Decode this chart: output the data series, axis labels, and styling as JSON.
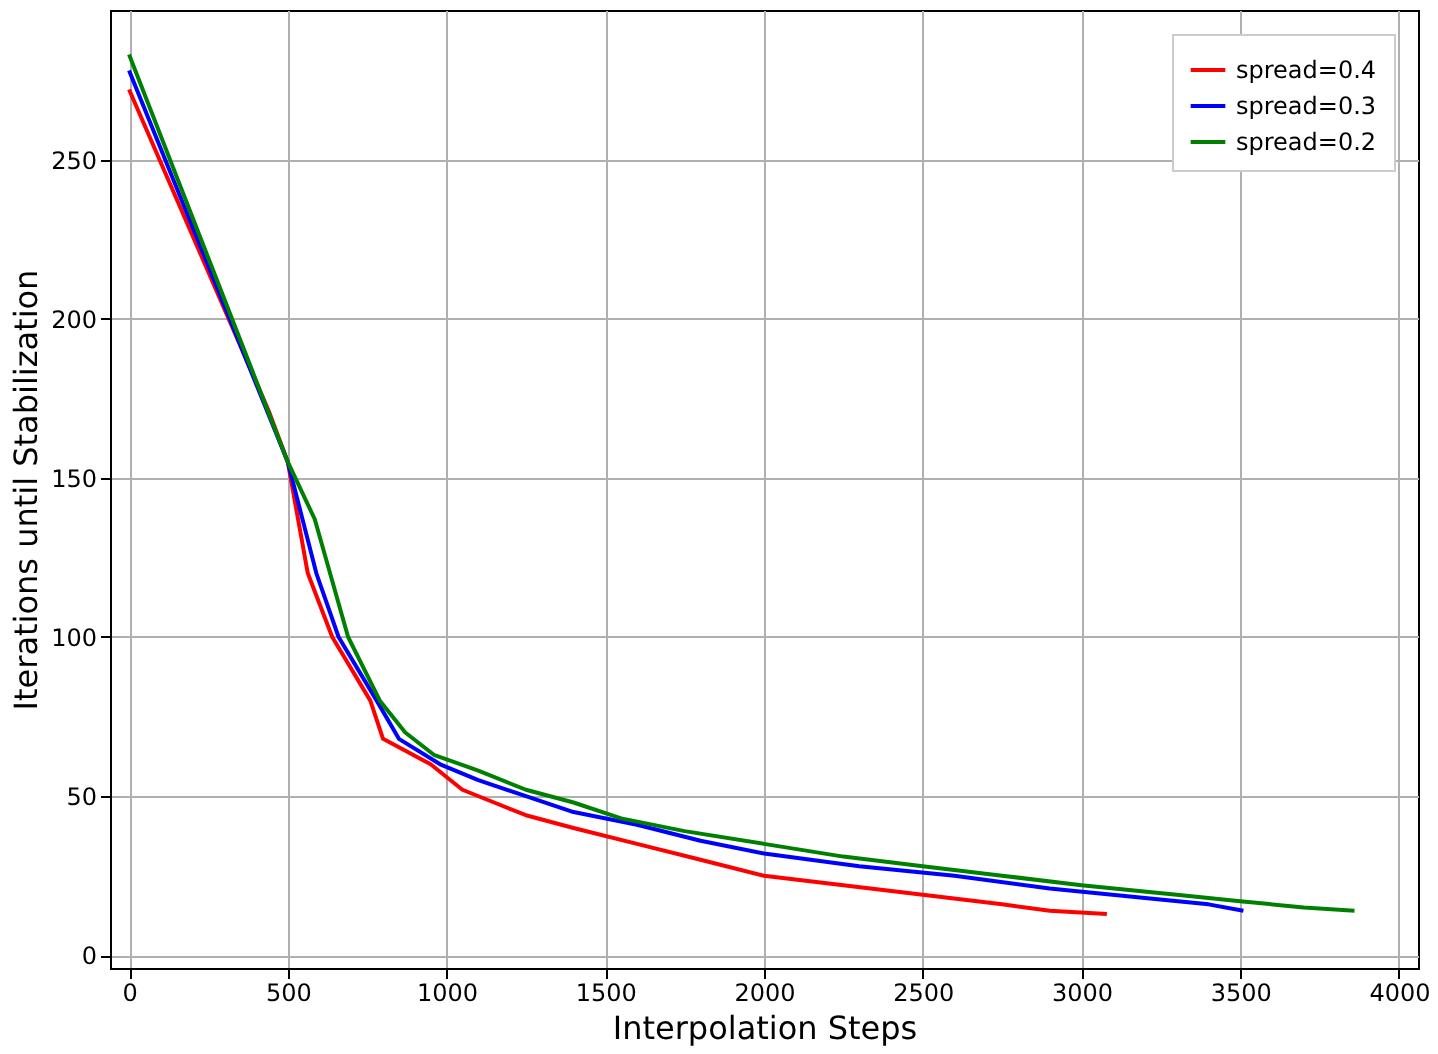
{
  "chart_data": {
    "type": "line",
    "xlabel": "Interpolation Steps",
    "ylabel": "Iterations until Stabilization",
    "xlim": [
      -60,
      4060
    ],
    "ylim": [
      -4,
      297
    ],
    "xticks": [
      0,
      500,
      1000,
      1500,
      2000,
      2500,
      3000,
      3500,
      4000
    ],
    "yticks": [
      0,
      50,
      100,
      150,
      200,
      250
    ],
    "grid": true,
    "legend": "top right",
    "line_style": "solid",
    "marker": "none",
    "series": [
      {
        "name": "spread=0.4",
        "color": "#ff0000",
        "x": [
          0,
          440,
          500,
          563,
          640,
          760,
          800,
          950,
          1050,
          1150,
          1250,
          1400,
          1600,
          1800,
          2000,
          2250,
          2500,
          2750,
          2900,
          3080
        ],
        "values": [
          272,
          171,
          155,
          120,
          100,
          80,
          68,
          60,
          52,
          48,
          44,
          40,
          35,
          30,
          25,
          22,
          19,
          16,
          14,
          13
        ]
      },
      {
        "name": "spread=0.3",
        "color": "#0000ff",
        "x": [
          0,
          500,
          590,
          660,
          780,
          850,
          980,
          1100,
          1250,
          1400,
          1600,
          1800,
          2000,
          2300,
          2600,
          2900,
          3200,
          3400,
          3510
        ],
        "values": [
          278,
          155,
          120,
          100,
          80,
          68,
          60,
          55,
          50,
          45,
          41,
          36,
          32,
          28,
          25,
          21,
          18,
          16,
          14
        ]
      },
      {
        "name": "spread=0.2",
        "color": "#008000",
        "x": [
          0,
          500,
          585,
          690,
          790,
          870,
          960,
          1100,
          1250,
          1400,
          1550,
          1750,
          2000,
          2250,
          2500,
          2750,
          3000,
          3300,
          3500,
          3700,
          3860
        ],
        "values": [
          283,
          155,
          137,
          100,
          80,
          70,
          63,
          58,
          52,
          48,
          43,
          39,
          35,
          31,
          28,
          25,
          22,
          19,
          17,
          15,
          14
        ]
      }
    ]
  }
}
